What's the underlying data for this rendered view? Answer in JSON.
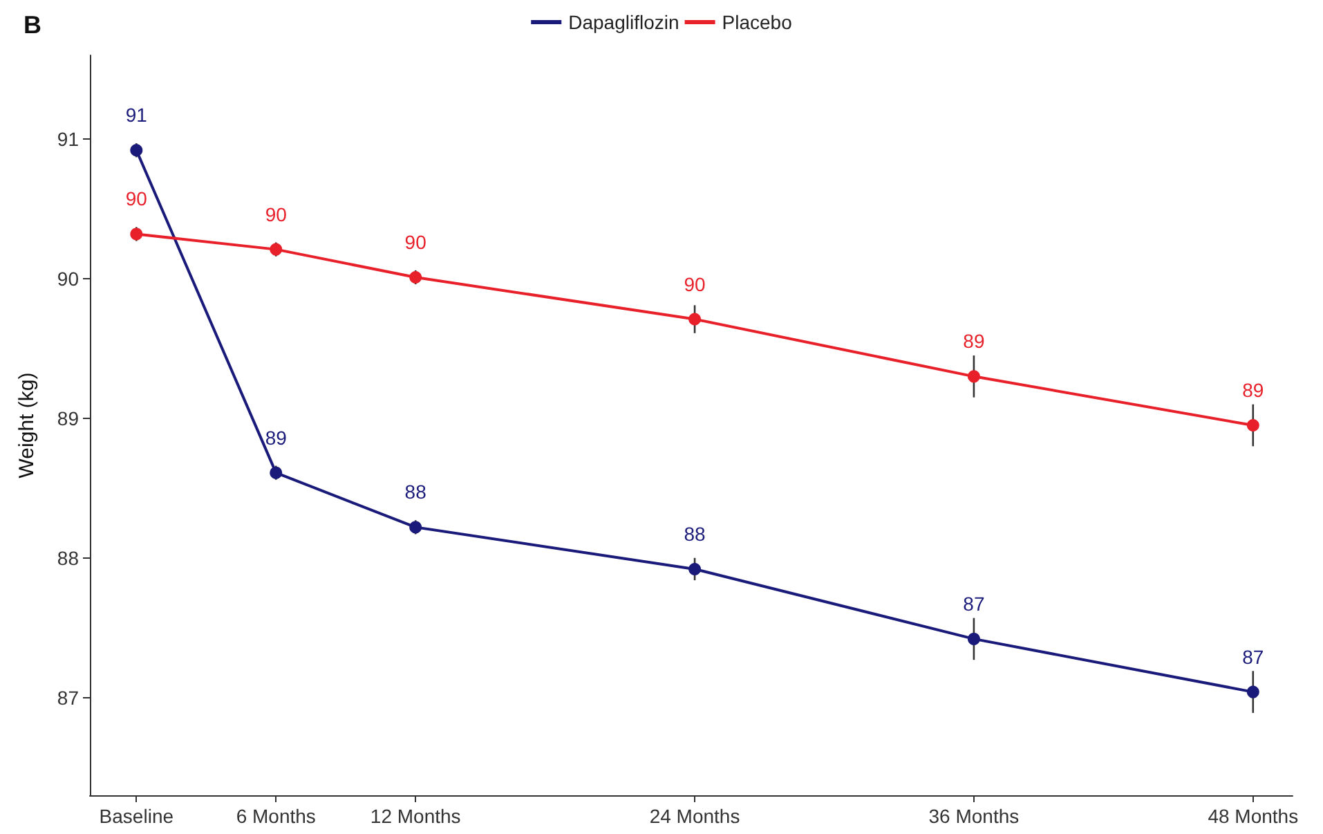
{
  "chart_data": {
    "type": "line",
    "title": "B",
    "ylabel": "Weight (kg)",
    "x": [
      0,
      6,
      12,
      24,
      36,
      48
    ],
    "xlim": [
      -2,
      49.7
    ],
    "xticks": [
      {
        "value": 0,
        "label": "Baseline"
      },
      {
        "value": 6,
        "label": "6 Months"
      },
      {
        "value": 12,
        "label": "12 Months"
      },
      {
        "value": 24,
        "label": "24 Months"
      },
      {
        "value": 36,
        "label": "36 Months"
      },
      {
        "value": 48,
        "label": "48 Months"
      }
    ],
    "ylim": [
      86.3,
      91.6
    ],
    "yticks": [
      87,
      88,
      89,
      90,
      91
    ],
    "series": [
      {
        "name": "Dapagliflozin",
        "color": "#1a1a7a",
        "values": [
          90.92,
          88.61,
          88.22,
          87.92,
          87.42,
          87.04
        ],
        "errors": [
          0.05,
          0.05,
          0.05,
          0.08,
          0.15,
          0.15
        ],
        "value_labels": [
          "91",
          "89",
          "88",
          "88",
          "87",
          "87"
        ]
      },
      {
        "name": "Placebo",
        "color": "#e8202a",
        "values": [
          90.32,
          90.21,
          90.01,
          89.71,
          89.3,
          88.95
        ],
        "errors": [
          0.05,
          0.05,
          0.05,
          0.1,
          0.15,
          0.15
        ],
        "value_labels": [
          "90",
          "90",
          "90",
          "90",
          "89",
          "89"
        ]
      }
    ],
    "legend": "top",
    "grid": false,
    "marker": "circle",
    "line_style": "solid"
  }
}
